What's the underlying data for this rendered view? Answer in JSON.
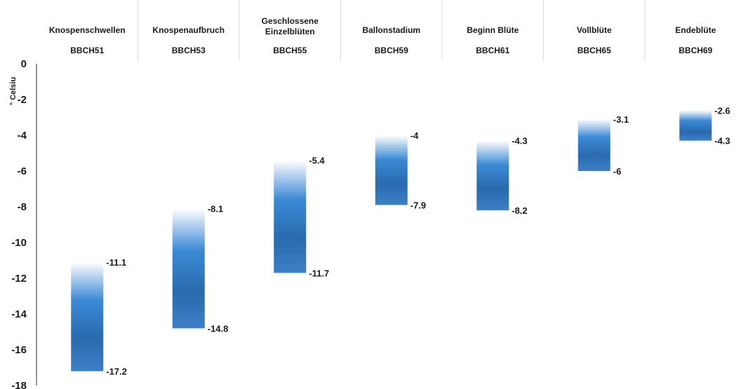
{
  "chart_data": {
    "type": "bar",
    "subtype": "floating-range",
    "ylabel": "° Celsiu",
    "ylim": [
      -18,
      0
    ],
    "yticks": [
      0,
      -2,
      -4,
      -6,
      -8,
      -10,
      -12,
      -14,
      -16,
      -18
    ],
    "grid": false,
    "categories": [
      {
        "name_lines": [
          "Knospenschwellen"
        ],
        "code": "BBCH51",
        "high": -11.1,
        "low": -17.2
      },
      {
        "name_lines": [
          "Knospenaufbruch"
        ],
        "code": "BBCH53",
        "high": -8.1,
        "low": -14.8
      },
      {
        "name_lines": [
          "Geschlossene",
          "Einzelblüten"
        ],
        "code": "BBCH55",
        "high": -5.4,
        "low": -11.7
      },
      {
        "name_lines": [
          "Ballonstadium"
        ],
        "code": "BBCH59",
        "high": -4,
        "low": -7.9
      },
      {
        "name_lines": [
          "Beginn Blüte"
        ],
        "code": "BBCH61",
        "high": -4.3,
        "low": -8.2
      },
      {
        "name_lines": [
          "Vollblüte"
        ],
        "code": "BBCH65",
        "high": -3.1,
        "low": -6
      },
      {
        "name_lines": [
          "Endeblüte"
        ],
        "code": "BBCH69",
        "high": -2.6,
        "low": -4.3
      }
    ],
    "colors": {
      "bar_top": "#ffffff",
      "bar_mid": "#3a8ad6",
      "bar_dark": "#2a6aae",
      "bar_bottom": "#3d7fc6",
      "header_divider": "#d9d9d9",
      "axis": "#333333"
    }
  }
}
